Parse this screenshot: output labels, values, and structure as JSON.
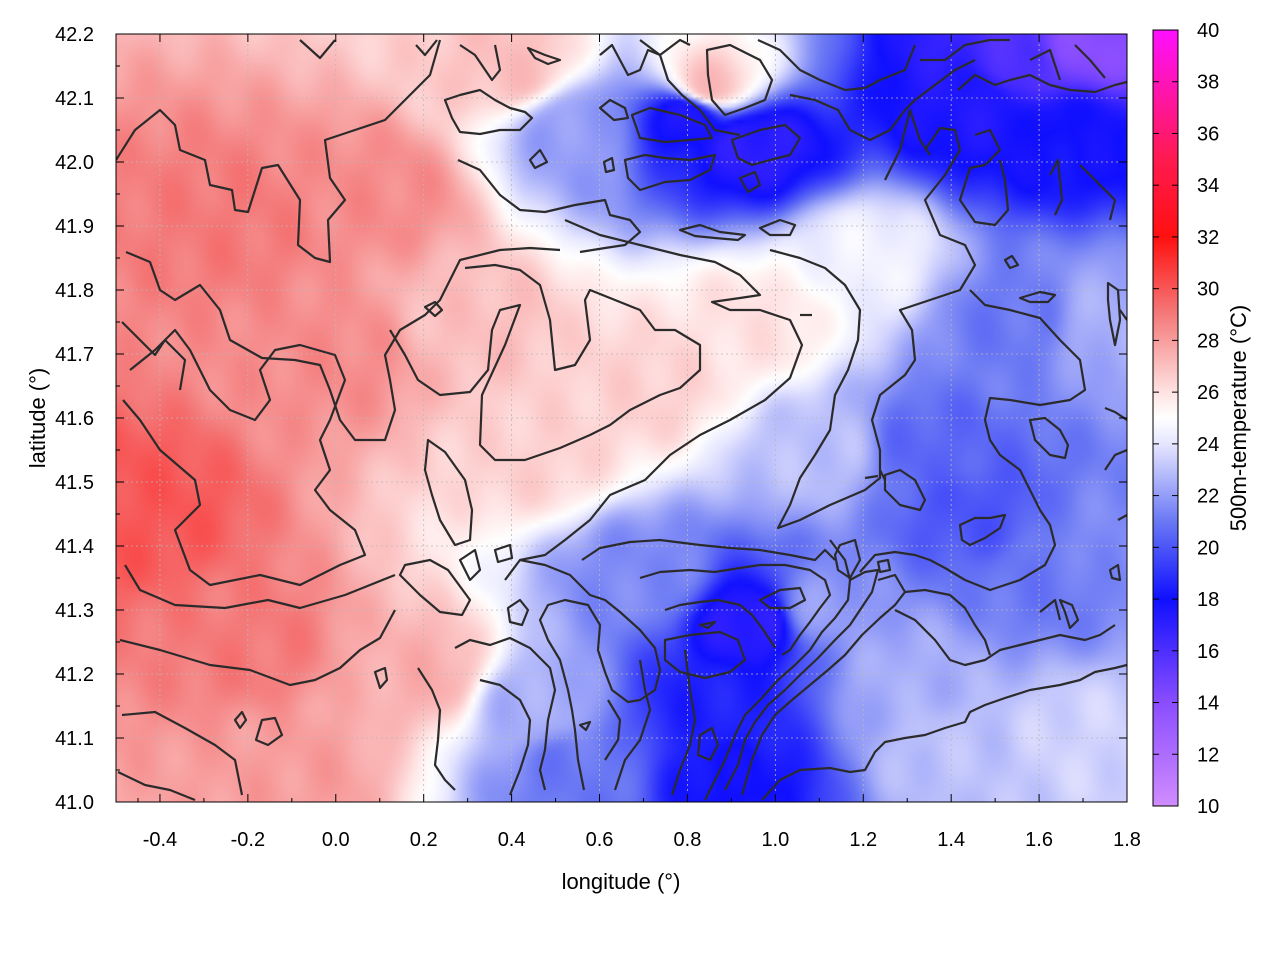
{
  "chart_data": {
    "type": "heatmap",
    "title": "",
    "xlabel": "longitude (°)",
    "ylabel": "latitude (°)",
    "colorbar_label": "500m-temperature (°C)",
    "xlim": [
      -0.5,
      1.8
    ],
    "ylim": [
      41.0,
      42.2
    ],
    "clim": [
      10,
      40
    ],
    "x_ticks": [
      -0.4,
      -0.2,
      0.0,
      0.2,
      0.4,
      0.6,
      0.8,
      1.0,
      1.2,
      1.4,
      1.6,
      1.8
    ],
    "x_tick_labels": [
      "-0.4",
      "-0.2",
      "0.0",
      "0.2",
      "0.4",
      "0.6",
      "0.8",
      "1.0",
      "1.2",
      "1.4",
      "1.6",
      "1.8"
    ],
    "y_ticks": [
      41.0,
      41.1,
      41.2,
      41.3,
      41.4,
      41.5,
      41.6,
      41.7,
      41.8,
      41.9,
      42.0,
      42.1,
      42.2
    ],
    "y_tick_labels": [
      "41.0",
      "41.1",
      "41.2",
      "41.3",
      "41.4",
      "41.5",
      "41.6",
      "41.7",
      "41.8",
      "41.9",
      "42.0",
      "42.1",
      "42.2"
    ],
    "colorbar_ticks": [
      10,
      12,
      14,
      16,
      18,
      20,
      22,
      24,
      26,
      28,
      30,
      32,
      34,
      36,
      38,
      40
    ],
    "colorbar_tick_labels": [
      "10",
      "12",
      "14",
      "16",
      "18",
      "20",
      "22",
      "24",
      "26",
      "28",
      "30",
      "32",
      "34",
      "36",
      "38",
      "40"
    ],
    "colormap": [
      {
        "value": 10,
        "color": "#d08cff"
      },
      {
        "value": 14,
        "color": "#8a4dff"
      },
      {
        "value": 18,
        "color": "#1010ff"
      },
      {
        "value": 21,
        "color": "#6a78f4"
      },
      {
        "value": 24,
        "color": "#e6e6ff"
      },
      {
        "value": 25,
        "color": "#ffffff"
      },
      {
        "value": 26,
        "color": "#ffe2e2"
      },
      {
        "value": 29,
        "color": "#f47a7a"
      },
      {
        "value": 32,
        "color": "#ff1010"
      },
      {
        "value": 35,
        "color": "#ff1a50"
      },
      {
        "value": 40,
        "color": "#ff10ff"
      }
    ],
    "grid": true,
    "field_samples": [
      {
        "lon": -0.45,
        "lat": 41.45,
        "value": 30.0
      },
      {
        "lon": -0.2,
        "lat": 41.25,
        "value": 29.0
      },
      {
        "lon": -0.25,
        "lat": 41.9,
        "value": 29.0
      },
      {
        "lon": 0.0,
        "lat": 41.7,
        "value": 28.5
      },
      {
        "lon": 0.1,
        "lat": 41.95,
        "value": 28.5
      },
      {
        "lon": -0.1,
        "lat": 41.05,
        "value": 28.0
      },
      {
        "lon": 0.2,
        "lat": 41.2,
        "value": 27.5
      },
      {
        "lon": 0.3,
        "lat": 41.75,
        "value": 27.0
      },
      {
        "lon": 0.4,
        "lat": 42.15,
        "value": 27.0
      },
      {
        "lon": 0.45,
        "lat": 41.55,
        "value": 26.5
      },
      {
        "lon": 0.7,
        "lat": 41.65,
        "value": 26.5
      },
      {
        "lon": 0.95,
        "lat": 41.75,
        "value": 26.0
      },
      {
        "lon": 0.85,
        "lat": 42.12,
        "value": 27.0
      },
      {
        "lon": 0.55,
        "lat": 42.05,
        "value": 22.0
      },
      {
        "lon": 0.8,
        "lat": 42.07,
        "value": 17.5
      },
      {
        "lon": 0.95,
        "lat": 42.03,
        "value": 17.0
      },
      {
        "lon": 1.2,
        "lat": 41.85,
        "value": 24.5
      },
      {
        "lon": 1.1,
        "lat": 41.55,
        "value": 23.0
      },
      {
        "lon": 1.35,
        "lat": 41.55,
        "value": 20.5
      },
      {
        "lon": 1.45,
        "lat": 41.45,
        "value": 20.0
      },
      {
        "lon": 1.55,
        "lat": 41.75,
        "value": 21.0
      },
      {
        "lon": 1.65,
        "lat": 42.05,
        "value": 18.0
      },
      {
        "lon": 1.55,
        "lat": 42.15,
        "value": 16.0
      },
      {
        "lon": 1.7,
        "lat": 42.18,
        "value": 14.0
      },
      {
        "lon": 1.45,
        "lat": 42.1,
        "value": 17.5
      },
      {
        "lon": 0.7,
        "lat": 41.35,
        "value": 21.5
      },
      {
        "lon": 0.95,
        "lat": 41.28,
        "value": 17.0
      },
      {
        "lon": 0.85,
        "lat": 41.15,
        "value": 18.5
      },
      {
        "lon": 0.9,
        "lat": 41.03,
        "value": 18.0
      },
      {
        "lon": 0.55,
        "lat": 41.05,
        "value": 21.0
      },
      {
        "lon": 0.45,
        "lat": 41.15,
        "value": 22.5
      },
      {
        "lon": 1.3,
        "lat": 41.2,
        "value": 22.5
      },
      {
        "lon": 1.4,
        "lat": 41.08,
        "value": 23.0
      },
      {
        "lon": 1.7,
        "lat": 41.1,
        "value": 23.5
      },
      {
        "lon": 1.75,
        "lat": 41.4,
        "value": 21.5
      },
      {
        "lon": 1.6,
        "lat": 41.35,
        "value": 21.0
      },
      {
        "lon": 1.1,
        "lat": 41.3,
        "value": 22.0
      },
      {
        "lon": 1.75,
        "lat": 41.75,
        "value": 22.5
      }
    ]
  }
}
